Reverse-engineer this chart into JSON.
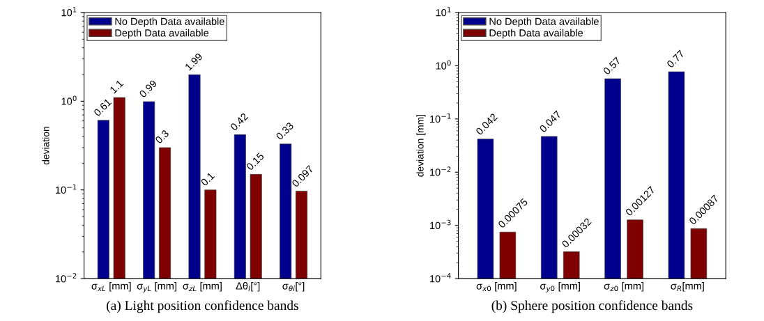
{
  "chart_data": [
    {
      "type": "bar",
      "ylabel": "deviation",
      "log": true,
      "ylim": [
        0.01,
        10
      ],
      "yticks": [
        {
          "value": 0.01,
          "label": "10$^{−2}$"
        },
        {
          "value": 0.1,
          "label": "10$^{−1}$"
        },
        {
          "value": 1,
          "label": "10$^{0}$"
        },
        {
          "value": 10,
          "label": "10$^{1}$"
        }
      ],
      "categories": [
        "σ$_{xL}$ [mm]",
        "σ$_{yL}$ [mm]",
        "σ$_{zL}$ [mm]",
        "Δθ$_{l}$[°]",
        "σ$_{θi}$[°]"
      ],
      "series": [
        {
          "name": "No Depth Data available",
          "color": "#00008f",
          "values": [
            0.61,
            0.99,
            1.99,
            0.42,
            0.33
          ]
        },
        {
          "name": "Depth Data available",
          "color": "#7f0000",
          "values": [
            1.1,
            0.3,
            0.1,
            0.15,
            0.097
          ]
        }
      ],
      "data_labels": true,
      "legend": "top left",
      "grid": false,
      "annotations": [
        "(a) Light position confidence bands"
      ]
    },
    {
      "type": "bar",
      "ylabel": "deviation [mm]",
      "log": true,
      "ylim": [
        0.0001,
        10
      ],
      "yticks": [
        {
          "value": 0.0001,
          "label": "10$^{−4}$"
        },
        {
          "value": 0.001,
          "label": "10$^{−3}$"
        },
        {
          "value": 0.01,
          "label": "10$^{−2}$"
        },
        {
          "value": 0.1,
          "label": "10$^{−1}$"
        },
        {
          "value": 1,
          "label": "10$^{0}$"
        },
        {
          "value": 10,
          "label": "10$^{1}$"
        }
      ],
      "categories": [
        "σ$_{x0}$ [mm]",
        "σ$_{y0}$ [mm]",
        "σ$_{z0}$ [mm]",
        "σ$_{R}$[mm]"
      ],
      "series": [
        {
          "name": "No Depth Data available",
          "color": "#00008f",
          "values": [
            0.042,
            0.047,
            0.57,
            0.77
          ]
        },
        {
          "name": "Depth Data available",
          "color": "#7f0000",
          "values": [
            0.00075,
            0.00032,
            0.00127,
            0.00087
          ]
        }
      ],
      "data_labels": true,
      "legend": "top left",
      "grid": false,
      "annotations": [
        "(b) Sphere position confidence bands"
      ]
    }
  ]
}
